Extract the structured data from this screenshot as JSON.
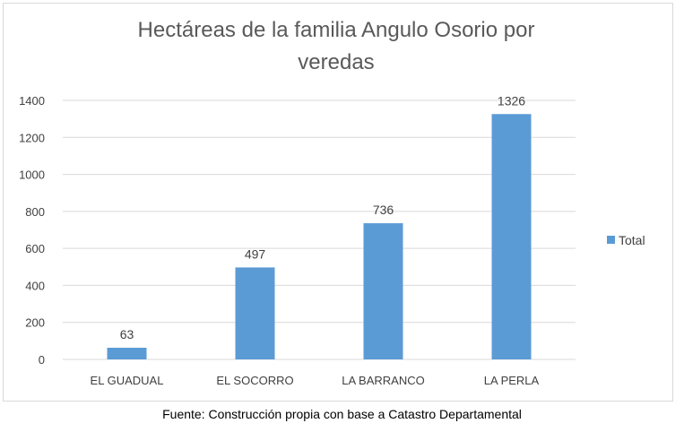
{
  "chart_data": {
    "type": "bar",
    "title": "Hectáreas de la familia Angulo Osorio por veredas",
    "title_lines": [
      "Hectáreas de la familia Angulo Osorio por",
      "veredas"
    ],
    "categories": [
      "EL GUADUAL",
      "EL SOCORRO",
      "LA BARRANCO",
      "LA PERLA"
    ],
    "series": [
      {
        "name": "Total",
        "values": [
          63,
          497,
          736,
          1326
        ]
      }
    ],
    "data_labels": [
      "63",
      "497",
      "736",
      "1326"
    ],
    "ylim": [
      0,
      1400
    ],
    "yticks": [
      0,
      200,
      400,
      600,
      800,
      1000,
      1200,
      1400
    ],
    "ytick_labels": [
      "0",
      "200",
      "400",
      "600",
      "800",
      "1000",
      "1200",
      "1400"
    ],
    "xlabel": "",
    "ylabel": "",
    "grid": true,
    "legend_position": "right",
    "bar_color": "#5b9bd5",
    "grid_color": "#d9d9d9"
  },
  "caption": "Fuente: Construcción propia con base a Catastro Departamental"
}
